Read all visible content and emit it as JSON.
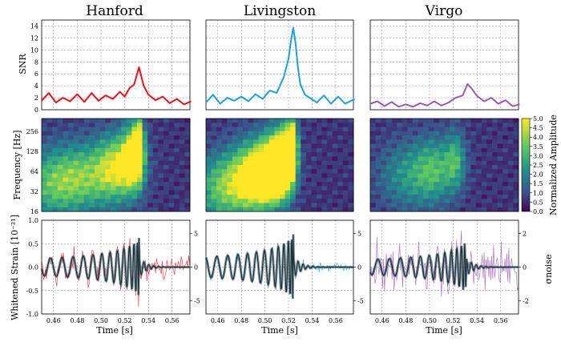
{
  "figure": {
    "detectors": [
      "Hanford",
      "Livingston",
      "Virgo"
    ],
    "row_labels": {
      "snr": "SNR",
      "spectrogram": "Frequency [Hz]",
      "strain": "Whitened Strain [10⁻²¹]"
    },
    "x_label": "Time [s]",
    "x_ticks": [
      "0.46",
      "0.48",
      "0.50",
      "0.52",
      "0.54",
      "0.56"
    ],
    "snr_ticks": [
      "0",
      "2",
      "4",
      "6",
      "8",
      "10",
      "12",
      "14"
    ],
    "freq_ticks": [
      "16",
      "32",
      "64",
      "128",
      "256"
    ],
    "strain_ticks": [
      "-1.0",
      "-0.5",
      "0.0",
      "0.5",
      "1.0"
    ],
    "noise_label": "σnoise",
    "colorbar_label": "Normalized Amplitude",
    "colorbar_ticks": [
      "0.0",
      "0.5",
      "1.0",
      "1.5",
      "2.0",
      "2.5",
      "3.0",
      "3.5",
      "4.0",
      "4.5",
      "5.0"
    ],
    "noise_ticks_hl": [
      "-5",
      "0",
      "5"
    ],
    "noise_ticks_v": [
      "-2",
      "0",
      "2"
    ]
  },
  "colors": {
    "hanford": "#e8141c",
    "livingston": "#1ea0dc",
    "virgo": "#9b59b6",
    "model": "#2b4f5c"
  },
  "chart_data": [
    {
      "type": "line",
      "panel": "SNR time series",
      "series": [
        {
          "name": "Hanford",
          "x": [
            0.45,
            0.456,
            0.462,
            0.468,
            0.474,
            0.48,
            0.486,
            0.492,
            0.498,
            0.504,
            0.51,
            0.516,
            0.52,
            0.524,
            0.528,
            0.532,
            0.536,
            0.54,
            0.546,
            0.552,
            0.558,
            0.564,
            0.57,
            0.576
          ],
          "values": [
            1.5,
            2.8,
            1.2,
            2.0,
            1.4,
            2.6,
            1.3,
            2.8,
            1.5,
            2.4,
            1.8,
            3.0,
            2.2,
            3.6,
            4.2,
            7.1,
            4.0,
            2.5,
            1.6,
            2.2,
            1.1,
            1.8,
            0.9,
            1.4
          ]
        },
        {
          "name": "Livingston",
          "x": [
            0.45,
            0.456,
            0.462,
            0.468,
            0.474,
            0.48,
            0.486,
            0.492,
            0.498,
            0.504,
            0.51,
            0.516,
            0.52,
            0.522,
            0.524,
            0.526,
            0.528,
            0.53,
            0.534,
            0.538,
            0.544,
            0.55,
            0.556,
            0.562,
            0.568,
            0.576
          ],
          "values": [
            1.2,
            2.5,
            1.0,
            2.0,
            1.5,
            2.2,
            1.4,
            2.6,
            1.8,
            3.2,
            2.8,
            5.5,
            8.5,
            11.5,
            13.7,
            11.0,
            7.0,
            4.2,
            2.5,
            2.0,
            1.2,
            2.4,
            1.0,
            2.2,
            1.0,
            1.8
          ]
        },
        {
          "name": "Virgo",
          "x": [
            0.45,
            0.456,
            0.462,
            0.468,
            0.474,
            0.48,
            0.486,
            0.492,
            0.498,
            0.504,
            0.51,
            0.516,
            0.522,
            0.528,
            0.532,
            0.536,
            0.54,
            0.546,
            0.552,
            0.558,
            0.564,
            0.57,
            0.576
          ],
          "values": [
            1.0,
            1.4,
            0.6,
            1.3,
            0.5,
            0.9,
            0.5,
            1.1,
            0.7,
            1.4,
            0.7,
            1.2,
            2.0,
            2.4,
            4.3,
            3.4,
            2.3,
            1.4,
            2.0,
            1.0,
            1.6,
            0.6,
            0.9
          ]
        }
      ],
      "xlim": [
        0.45,
        0.575
      ],
      "ylim": [
        0,
        15
      ],
      "xlabel": "",
      "ylabel": "SNR",
      "grid": true
    },
    {
      "type": "heatmap",
      "panel": "Time-frequency spectrogram",
      "xlim": [
        0.45,
        0.575
      ],
      "ylim": [
        16,
        400
      ],
      "yscale": "log2",
      "colorbar": {
        "label": "Normalized Amplitude",
        "range": [
          0,
          5
        ]
      },
      "ylabel": "Frequency [Hz]"
    },
    {
      "type": "line",
      "panel": "Whitened strain",
      "series": [
        {
          "name": "Hanford data",
          "description": "whitened detector strain (thin red)"
        },
        {
          "name": "Livingston data",
          "description": "whitened detector strain (thin blue)"
        },
        {
          "name": "Virgo data",
          "description": "whitened detector strain (thin purple)"
        },
        {
          "name": "Model",
          "description": "reconstructed waveform band (dark)"
        }
      ],
      "xlim": [
        0.45,
        0.575
      ],
      "ylim": [
        -1.0,
        1.0
      ],
      "xlabel": "Time [s]",
      "ylabel": "Whitened Strain [10⁻²¹]",
      "y2label": "σnoise",
      "y2ticks_hl": [
        -5,
        0,
        5
      ],
      "y2ticks_v": [
        -2,
        0,
        2
      ]
    }
  ]
}
